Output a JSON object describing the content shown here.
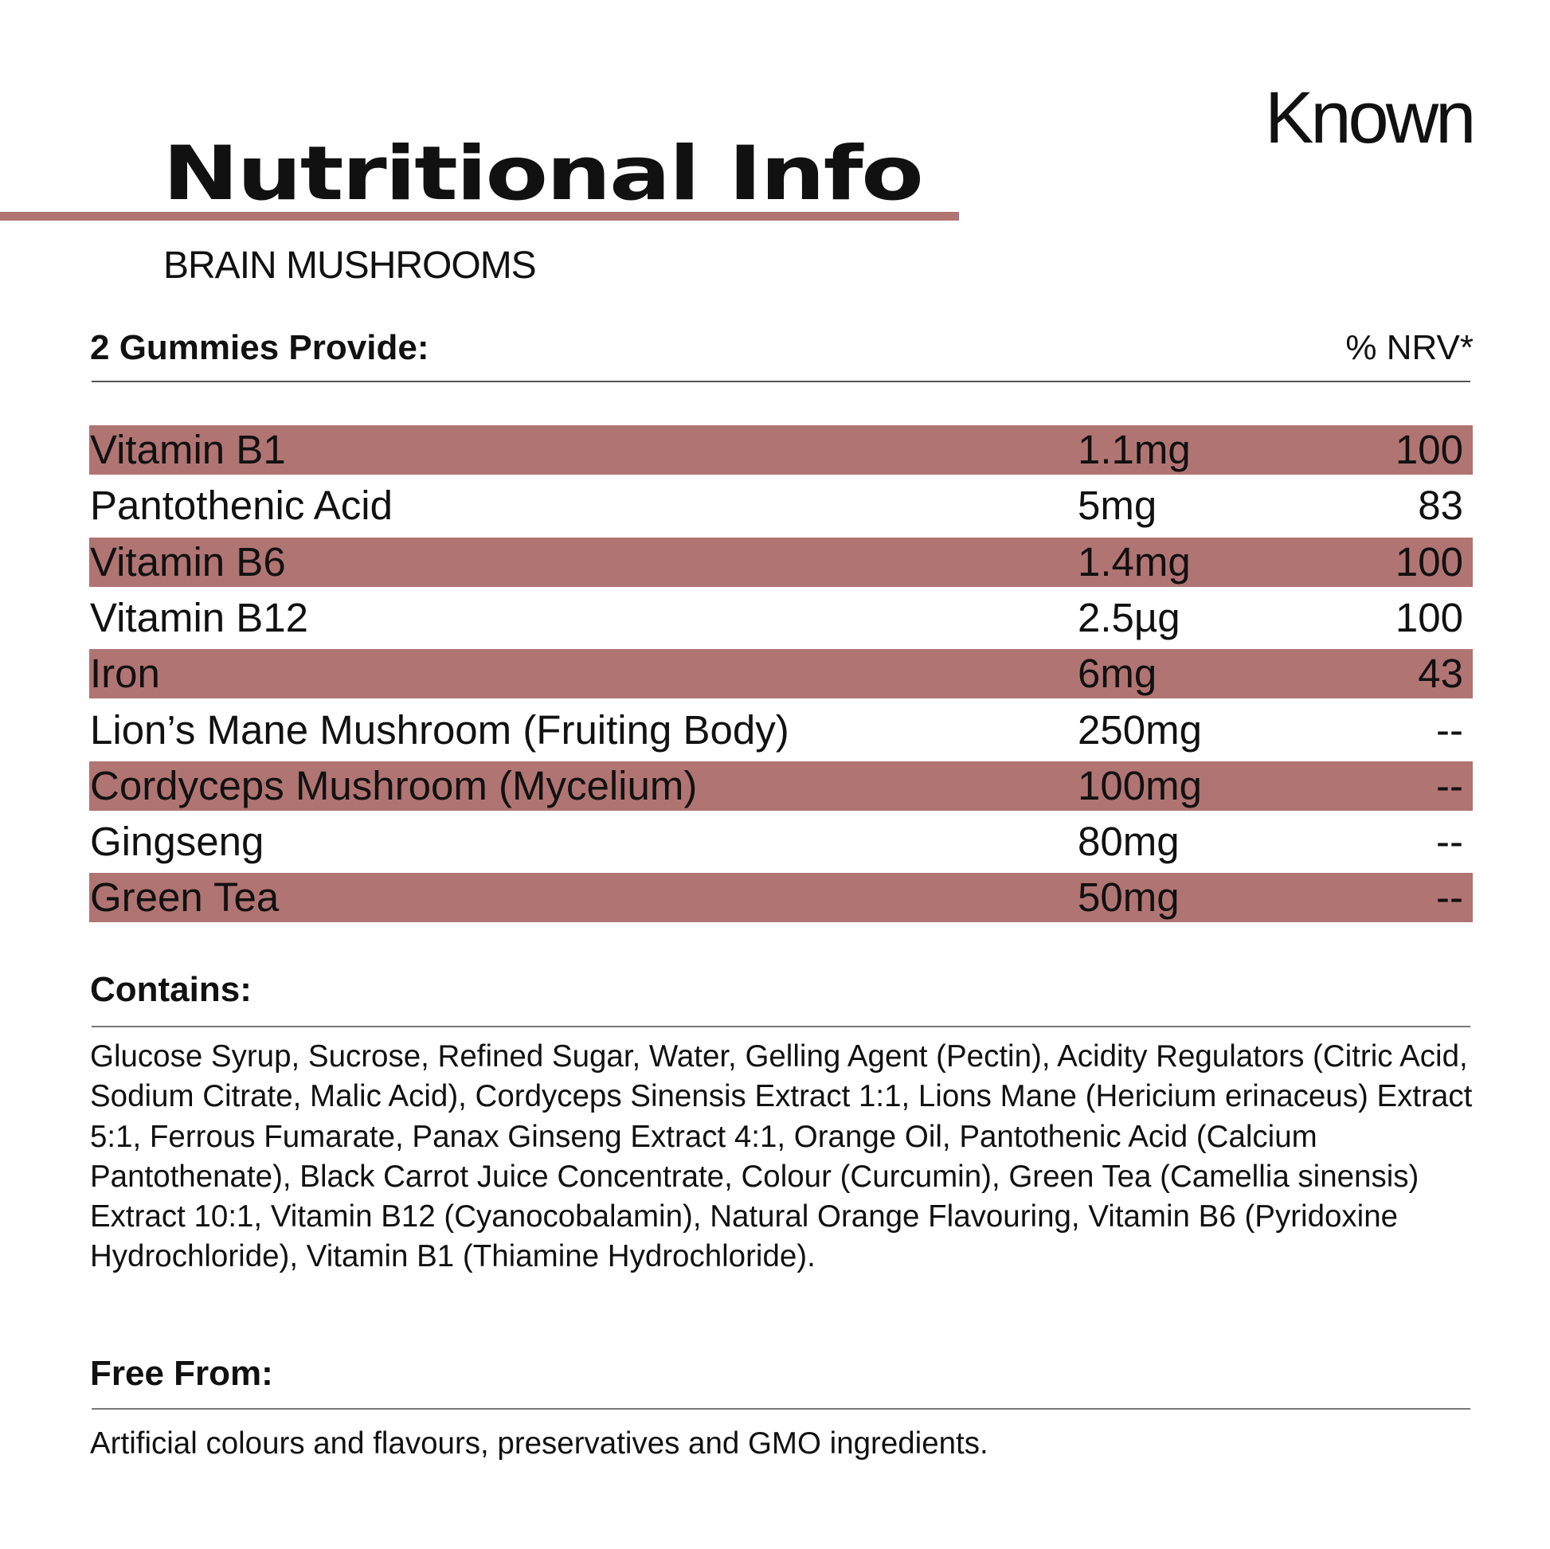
{
  "brand": "Known",
  "title": "Nutritional Info",
  "subtitle": "BRAIN MUSHROOMS",
  "accent_color": "#b07472",
  "table": {
    "header_label": "2 Gummies Provide:",
    "nrv_label": "% NRV*",
    "rows": [
      {
        "name": "Vitamin B1",
        "amount": "1.1mg",
        "nrv": "100"
      },
      {
        "name": "Pantothenic Acid",
        "amount": "5mg",
        "nrv": "83"
      },
      {
        "name": "Vitamin B6",
        "amount": "1.4mg",
        "nrv": "100"
      },
      {
        "name": "Vitamin B12",
        "amount": "2.5µg",
        "nrv": "100"
      },
      {
        "name": "Iron",
        "amount": "6mg",
        "nrv": "43"
      },
      {
        "name": "Lion’s Mane Mushroom (Fruiting Body)",
        "amount": "250mg",
        "nrv": "--"
      },
      {
        "name": "Cordyceps Mushroom (Mycelium)",
        "amount": "100mg",
        "nrv": "--"
      },
      {
        "name": "Gingseng",
        "amount": "80mg",
        "nrv": "--"
      },
      {
        "name": "Green Tea",
        "amount": "50mg",
        "nrv": "--"
      }
    ]
  },
  "contains": {
    "heading": "Contains:",
    "text": "Glucose Syrup, Sucrose, Refined Sugar, Water, Gelling Agent (Pectin), Acidity Regulators (Citric Acid, Sodium Citrate, Malic Acid), Cordyceps Sinensis Extract 1:1, Lions Mane (Hericium erinaceus) Extract 5:1, Ferrous Fumarate, Panax Ginseng Extract 4:1, Orange Oil, Pantothenic Acid (Calcium Pantothenate), Black Carrot Juice Concentrate, Colour (Curcumin), Green Tea (Camellia sinensis) Extract 10:1, Vitamin B12 (Cyanocobalamin), Natural Orange Flavouring, Vitamin B6 (Pyridoxine Hydrochloride), Vitamin B1 (Thiamine Hydrochloride)."
  },
  "free_from": {
    "heading": "Free From:",
    "text": "Artificial colours and flavours, preservatives and GMO ingredients."
  }
}
